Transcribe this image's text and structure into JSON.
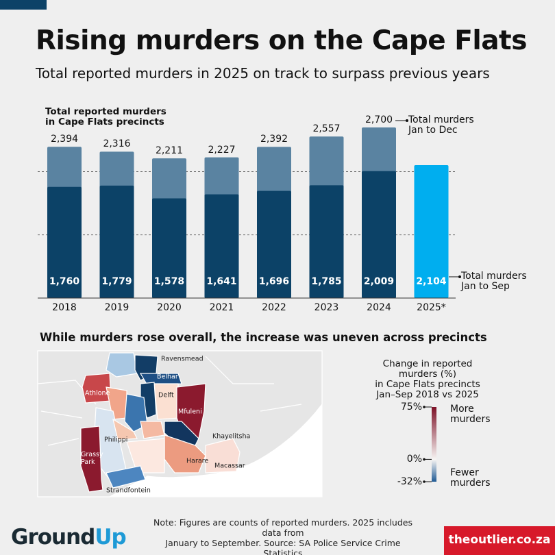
{
  "header": {
    "title": "Rising murders on the Cape Flats",
    "subtitle": "Total reported murders in 2025 on track to surpass previous years"
  },
  "chart_data": {
    "type": "bar",
    "bar_mode": "overlay",
    "title": "Total reported murders\nin Cape Flats precincts",
    "categories": [
      "2018",
      "2019",
      "2020",
      "2021",
      "2022",
      "2023",
      "2024",
      "2025*"
    ],
    "series": [
      {
        "name": "Total murders\nJan to Dec",
        "color": "#5a83a1",
        "values": [
          2394,
          2316,
          2211,
          2227,
          2392,
          2557,
          2700,
          null
        ],
        "value_labels": [
          "2,394",
          "2,316",
          "2,211",
          "2,227",
          "2,392",
          "2,557",
          "2,700",
          null
        ]
      },
      {
        "name": "Total murders\nJan to Sep",
        "color": "#0c4267",
        "colors": [
          "#0c4267",
          "#0c4267",
          "#0c4267",
          "#0c4267",
          "#0c4267",
          "#0c4267",
          "#0c4267",
          "#00aeef"
        ],
        "values": [
          1760,
          1779,
          1578,
          1641,
          1696,
          1785,
          2009,
          2104
        ],
        "value_labels": [
          "1,760",
          "1,779",
          "1,578",
          "1,641",
          "1,696",
          "1,785",
          "2,009",
          "2,104"
        ]
      }
    ],
    "ylim": [
      0,
      2700
    ],
    "gridlines": [
      1000,
      2000
    ],
    "grid_style": "dashed"
  },
  "map": {
    "title": "While murders rose overall, the increase was uneven across precincts",
    "regions": [
      "Ravensmead",
      "Belhar",
      "Athlone",
      "Delft",
      "Mfuleni",
      "Philippi",
      "Khayelitsha",
      "Grassy\nPark",
      "Harare",
      "Macassar",
      "Strandfontein"
    ],
    "legend": {
      "title": "Change in reported murders (%)\nin Cape Flats precincts\nJan–Sep 2018 vs 2025",
      "colors": [
        "#1f5a94",
        "#f7f5f3",
        "#7d1228"
      ],
      "ticks": [
        {
          "value": 75,
          "label": "75%"
        },
        {
          "value": 0,
          "label": "0%"
        },
        {
          "value": -32,
          "label": "-32%"
        }
      ],
      "high_label": "More\nmurders",
      "low_label": "Fewer\nmurders"
    }
  },
  "footer": {
    "logo": [
      "Ground",
      "Up"
    ],
    "note": "Note: Figures are counts of reported murders. 2025 includes data from\nJanuary to September. Source: SA Police Service Crime Statistics",
    "source_site": "theoutlier.co.za"
  }
}
